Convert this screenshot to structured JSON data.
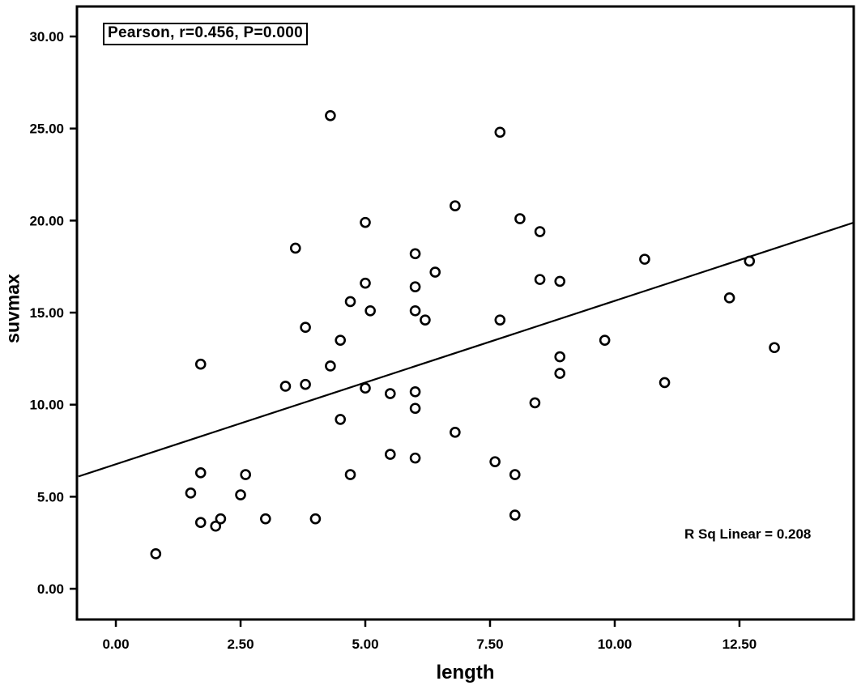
{
  "figure": {
    "annotation_box_text": "Pearson, r=0.456, P=0.000",
    "r_sq_text": "R Sq Linear = 0.208",
    "x_axis_title": "length",
    "y_axis_title": "suvmax"
  },
  "chart_data": {
    "type": "scatter",
    "title": "",
    "xlabel": "length",
    "ylabel": "suvmax",
    "xlim": [
      -0.78,
      14.79
    ],
    "ylim": [
      -1.67,
      31.63
    ],
    "grid": false,
    "x_ticks": [
      0,
      2.5,
      5,
      7.5,
      10,
      12.5
    ],
    "x_tick_labels": [
      "0.00",
      "2.50",
      "5.00",
      "7.50",
      "10.00",
      "12.50"
    ],
    "y_ticks": [
      0,
      5,
      10,
      15,
      20,
      25,
      30
    ],
    "y_tick_labels": [
      "0.00",
      "5.00",
      "10.00",
      "15.00",
      "20.00",
      "25.00",
      "30.00"
    ],
    "marker": "open-circle",
    "colors": {
      "marker": "#000000",
      "line": "#000000",
      "frame": "#000000",
      "background": "#ffffff"
    },
    "annotation": "Pearson, r=0.456, P=0.000",
    "r_sq_annotation": "R Sq Linear = 0.208",
    "regression_line": {
      "slope": 0.887,
      "intercept": 6.77,
      "x1": -0.75,
      "y1": 6.1,
      "x2": 14.79,
      "y2": 19.89
    },
    "points": [
      [
        0.8,
        1.9
      ],
      [
        1.5,
        5.2
      ],
      [
        1.7,
        6.3
      ],
      [
        1.7,
        12.2
      ],
      [
        1.7,
        3.6
      ],
      [
        2.0,
        3.4
      ],
      [
        2.1,
        3.8
      ],
      [
        2.5,
        5.1
      ],
      [
        2.6,
        6.2
      ],
      [
        3.0,
        3.8
      ],
      [
        3.4,
        11.0
      ],
      [
        3.6,
        18.5
      ],
      [
        3.8,
        11.1
      ],
      [
        3.8,
        14.2
      ],
      [
        4.0,
        3.8
      ],
      [
        4.3,
        25.7
      ],
      [
        4.3,
        12.1
      ],
      [
        4.5,
        13.5
      ],
      [
        4.5,
        9.2
      ],
      [
        4.7,
        15.6
      ],
      [
        4.7,
        6.2
      ],
      [
        5.0,
        19.9
      ],
      [
        5.0,
        16.6
      ],
      [
        5.0,
        10.9
      ],
      [
        5.1,
        15.1
      ],
      [
        5.5,
        10.6
      ],
      [
        5.5,
        7.3
      ],
      [
        6.0,
        18.2
      ],
      [
        6.0,
        16.4
      ],
      [
        6.0,
        15.1
      ],
      [
        6.0,
        10.7
      ],
      [
        6.0,
        9.8
      ],
      [
        6.0,
        7.1
      ],
      [
        6.2,
        14.6
      ],
      [
        6.4,
        17.2
      ],
      [
        6.8,
        20.8
      ],
      [
        6.8,
        8.5
      ],
      [
        7.6,
        6.9
      ],
      [
        7.7,
        24.8
      ],
      [
        7.7,
        14.6
      ],
      [
        8.0,
        6.2
      ],
      [
        8.0,
        4.0
      ],
      [
        8.1,
        20.1
      ],
      [
        8.4,
        10.1
      ],
      [
        8.5,
        19.4
      ],
      [
        8.5,
        16.8
      ],
      [
        8.9,
        16.7
      ],
      [
        8.9,
        12.6
      ],
      [
        8.9,
        11.7
      ],
      [
        9.8,
        13.5
      ],
      [
        10.6,
        17.9
      ],
      [
        11.0,
        11.2
      ],
      [
        12.3,
        15.8
      ],
      [
        12.7,
        17.8
      ],
      [
        13.2,
        13.1
      ]
    ]
  }
}
